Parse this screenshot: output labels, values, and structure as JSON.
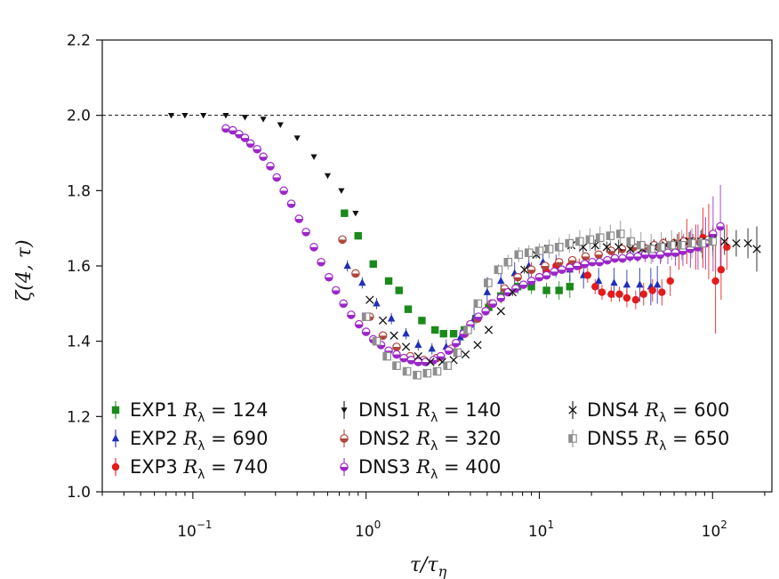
{
  "chart_data": {
    "type": "scatter",
    "title": "",
    "xlabel": "τ/τ",
    "xlabel_sub": "η",
    "ylabel": "ζ(4, τ)",
    "xscale": "log",
    "xlim": [
      0.03,
      220
    ],
    "ylim": [
      1.0,
      2.2
    ],
    "xticks": [
      {
        "value": 0.1,
        "base": "10",
        "exp": "−1"
      },
      {
        "value": 1,
        "base": "10",
        "exp": "0"
      },
      {
        "value": 10,
        "base": "10",
        "exp": "1"
      },
      {
        "value": 100,
        "base": "10",
        "exp": "2"
      }
    ],
    "yticks": [
      {
        "value": 1.0,
        "label": "1.0"
      },
      {
        "value": 1.2,
        "label": "1.2"
      },
      {
        "value": 1.4,
        "label": "1.4"
      },
      {
        "value": 1.6,
        "label": "1.6"
      },
      {
        "value": 1.8,
        "label": "1.8"
      },
      {
        "value": 2.0,
        "label": "2.0"
      },
      {
        "value": 2.2,
        "label": "2.2"
      }
    ],
    "reference_line": {
      "y": 2.0,
      "style": "dashed"
    },
    "legend_position": "bottom-left",
    "series": [
      {
        "name": "EXP1",
        "rlabel": "R",
        "rsub": "λ",
        "rvalue": "= 124",
        "marker": "square",
        "color": "#1a8a1a",
        "x": [
          0.75,
          0.9,
          1.1,
          1.35,
          1.55,
          1.75,
          2.1,
          2.5,
          2.8,
          3.2,
          3.7,
          4.3,
          5.1,
          6,
          7.5,
          9,
          11,
          13,
          15
        ],
        "y": [
          1.74,
          1.68,
          1.605,
          1.56,
          1.535,
          1.485,
          1.455,
          1.43,
          1.42,
          1.42,
          1.43,
          1.46,
          1.49,
          1.52,
          1.545,
          1.545,
          1.535,
          1.535,
          1.545
        ],
        "err": [
          0.01,
          0.01,
          0.01,
          0.01,
          0.01,
          0.01,
          0.01,
          0.01,
          0.01,
          0.01,
          0.01,
          0.015,
          0.015,
          0.02,
          0.02,
          0.02,
          0.02,
          0.025,
          0.03
        ]
      },
      {
        "name": "EXP2",
        "rlabel": "R",
        "rsub": "λ",
        "rvalue": "= 690",
        "marker": "triangle",
        "color": "#1f2fb8",
        "x": [
          0.78,
          0.95,
          1.15,
          1.4,
          1.7,
          2.0,
          2.4,
          2.9,
          3.5,
          4.2,
          5.0,
          6.0,
          7.2,
          8.7,
          10.5,
          12.5,
          15,
          18,
          22,
          27,
          32,
          38,
          44,
          48
        ],
        "y": [
          1.6,
          1.555,
          1.5,
          1.46,
          1.42,
          1.39,
          1.38,
          1.385,
          1.41,
          1.46,
          1.53,
          1.56,
          1.58,
          1.6,
          1.61,
          1.6,
          1.59,
          1.575,
          1.56,
          1.555,
          1.55,
          1.55,
          1.545,
          1.55
        ],
        "err": [
          0.015,
          0.015,
          0.015,
          0.015,
          0.015,
          0.015,
          0.015,
          0.02,
          0.02,
          0.03,
          0.04,
          0.04,
          0.03,
          0.03,
          0.03,
          0.03,
          0.03,
          0.035,
          0.035,
          0.04,
          0.04,
          0.045,
          0.05,
          0.05
        ]
      },
      {
        "name": "EXP3",
        "rlabel": "R",
        "rsub": "λ",
        "rvalue": "= 740",
        "marker": "circle",
        "color": "#e31b1b",
        "x": [
          9,
          11,
          12.5,
          15,
          17,
          19,
          21,
          23,
          26,
          29,
          32,
          36,
          40,
          45,
          51,
          57,
          64,
          71,
          80,
          88,
          95,
          104,
          112,
          121
        ],
        "y": [
          1.59,
          1.585,
          1.6,
          1.6,
          1.6,
          1.575,
          1.545,
          1.53,
          1.525,
          1.525,
          1.515,
          1.51,
          1.525,
          1.535,
          1.53,
          1.56,
          1.64,
          1.665,
          1.65,
          1.675,
          1.665,
          1.56,
          1.59,
          1.65
        ],
        "err": [
          0.02,
          0.02,
          0.02,
          0.02,
          0.02,
          0.02,
          0.02,
          0.02,
          0.02,
          0.02,
          0.025,
          0.025,
          0.03,
          0.03,
          0.035,
          0.04,
          0.05,
          0.06,
          0.06,
          0.08,
          0.1,
          0.14,
          0.08,
          0.06
        ]
      },
      {
        "name": "DNS1",
        "rlabel": "R",
        "rsub": "λ",
        "rvalue": "= 140",
        "marker": "triangle-down",
        "color": "#111111",
        "x": [
          0.075,
          0.09,
          0.115,
          0.155,
          0.2,
          0.255,
          0.32,
          0.4,
          0.5,
          0.6,
          0.72,
          0.87
        ],
        "y": [
          2.0,
          2.0,
          2.0,
          2.0,
          1.995,
          1.99,
          1.975,
          1.94,
          1.89,
          1.84,
          1.8,
          1.74
        ],
        "err": [
          0,
          0,
          0,
          0,
          0,
          0,
          0,
          0,
          0,
          0,
          0,
          0
        ]
      },
      {
        "name": "DNS2",
        "rlabel": "R",
        "rsub": "λ",
        "rvalue": "= 320",
        "marker": "circle-half",
        "color": "#b0453a",
        "x": [
          0.73,
          0.87,
          1.05,
          1.25,
          1.5,
          1.8,
          2.15,
          2.55,
          3.1,
          3.7,
          4.4,
          5.3,
          6.3,
          7.5,
          9,
          10.8,
          13,
          15.5,
          18.5,
          22,
          26,
          30,
          35,
          40,
          46,
          52,
          60,
          68,
          77,
          86,
          95
        ],
        "y": [
          1.67,
          1.58,
          1.465,
          1.415,
          1.385,
          1.36,
          1.35,
          1.355,
          1.38,
          1.42,
          1.46,
          1.5,
          1.54,
          1.57,
          1.59,
          1.6,
          1.61,
          1.615,
          1.625,
          1.63,
          1.64,
          1.645,
          1.65,
          1.65,
          1.655,
          1.66,
          1.66,
          1.665,
          1.665,
          1.665,
          1.67
        ],
        "err": [
          0.005,
          0.005,
          0.005,
          0.005,
          0.005,
          0.005,
          0.005,
          0.005,
          0.005,
          0.005,
          0.005,
          0.005,
          0.01,
          0.01,
          0.01,
          0.01,
          0.01,
          0.01,
          0.01,
          0.01,
          0.012,
          0.012,
          0.012,
          0.015,
          0.015,
          0.015,
          0.015,
          0.02,
          0.02,
          0.02,
          0.02
        ]
      },
      {
        "name": "DNS3",
        "rlabel": "R",
        "rsub": "λ",
        "rvalue": "= 400",
        "marker": "circle-half",
        "color": "#9b27c9",
        "x": [
          0.155,
          0.17,
          0.185,
          0.2,
          0.215,
          0.235,
          0.255,
          0.28,
          0.305,
          0.335,
          0.37,
          0.41,
          0.45,
          0.5,
          0.55,
          0.61,
          0.67,
          0.74,
          0.82,
          0.91,
          1.0,
          1.1,
          1.22,
          1.35,
          1.5,
          1.65,
          1.82,
          2.0,
          2.2,
          2.45,
          2.7,
          3.0,
          3.3,
          3.65,
          4.0,
          4.45,
          4.9,
          5.4,
          6.0,
          6.6,
          7.3,
          8.1,
          9.0,
          10.0,
          11,
          12.2,
          13.5,
          15,
          16.5,
          18.3,
          20.2,
          22.3,
          24.7,
          27.3,
          30.2,
          33.4,
          36.9,
          40.8,
          45.1,
          49.9,
          55.2,
          61,
          67.4,
          74.5,
          82.4,
          91.1,
          100.7,
          111
        ],
        "y": [
          1.965,
          1.96,
          1.95,
          1.94,
          1.925,
          1.91,
          1.89,
          1.865,
          1.835,
          1.8,
          1.765,
          1.725,
          1.69,
          1.65,
          1.61,
          1.57,
          1.535,
          1.5,
          1.47,
          1.445,
          1.425,
          1.405,
          1.39,
          1.375,
          1.365,
          1.355,
          1.35,
          1.345,
          1.345,
          1.35,
          1.36,
          1.375,
          1.395,
          1.42,
          1.445,
          1.465,
          1.48,
          1.5,
          1.515,
          1.53,
          1.54,
          1.55,
          1.56,
          1.57,
          1.575,
          1.585,
          1.59,
          1.595,
          1.6,
          1.605,
          1.61,
          1.61,
          1.615,
          1.62,
          1.62,
          1.625,
          1.625,
          1.63,
          1.63,
          1.63,
          1.635,
          1.635,
          1.64,
          1.645,
          1.65,
          1.66,
          1.685,
          1.705
        ],
        "err": [
          0,
          0,
          0,
          0,
          0,
          0,
          0,
          0,
          0,
          0,
          0,
          0,
          0,
          0,
          0,
          0,
          0,
          0,
          0,
          0,
          0,
          0,
          0,
          0,
          0,
          0,
          0,
          0,
          0,
          0,
          0,
          0,
          0,
          0,
          0,
          0,
          0,
          0,
          0,
          0,
          0.005,
          0.005,
          0.005,
          0.005,
          0.005,
          0.005,
          0.005,
          0.008,
          0.008,
          0.008,
          0.01,
          0.01,
          0.01,
          0.012,
          0.012,
          0.015,
          0.015,
          0.02,
          0.02,
          0.025,
          0.03,
          0.035,
          0.04,
          0.05,
          0.06,
          0.07,
          0.1,
          0.11
        ]
      },
      {
        "name": "DNS4",
        "rlabel": "R",
        "rsub": "λ",
        "rvalue": "= 600",
        "marker": "cross",
        "color": "#111111",
        "x": [
          1.05,
          1.25,
          1.45,
          1.7,
          2.0,
          2.35,
          2.75,
          3.2,
          3.75,
          4.4,
          5.1,
          6.0,
          7.0,
          8.2,
          9.6,
          11.2,
          13.1,
          15.3,
          17.9,
          21,
          24.5,
          28.7,
          33.5,
          39.2,
          45.8,
          53.6,
          62.7,
          73.3,
          85.7,
          100.2,
          117.2,
          137,
          160,
          180
        ],
        "y": [
          1.51,
          1.455,
          1.415,
          1.385,
          1.36,
          1.345,
          1.345,
          1.35,
          1.365,
          1.39,
          1.43,
          1.48,
          1.53,
          1.59,
          1.63,
          1.645,
          1.65,
          1.655,
          1.65,
          1.655,
          1.65,
          1.65,
          1.645,
          1.645,
          1.65,
          1.655,
          1.66,
          1.665,
          1.665,
          1.67,
          1.665,
          1.66,
          1.66,
          1.645
        ],
        "err": [
          0,
          0,
          0,
          0,
          0,
          0,
          0,
          0,
          0,
          0,
          0,
          0,
          0.01,
          0.01,
          0.01,
          0.01,
          0.01,
          0.01,
          0.015,
          0.015,
          0.015,
          0.02,
          0.02,
          0.02,
          0.02,
          0.02,
          0.025,
          0.025,
          0.03,
          0.03,
          0.035,
          0.035,
          0.04,
          0.06
        ]
      },
      {
        "name": "DNS5",
        "rlabel": "R",
        "rsub": "λ",
        "rvalue": "= 650",
        "marker": "square-half",
        "color": "#8e8e8e",
        "x": [
          1.0,
          1.15,
          1.32,
          1.5,
          1.72,
          1.97,
          2.25,
          2.57,
          2.95,
          3.37,
          3.86,
          4.42,
          5.06,
          5.8,
          6.6,
          7.6,
          8.7,
          10,
          11.4,
          13,
          14.9,
          17.1,
          19.6,
          22.4,
          25.7,
          29.4,
          33.7,
          38.6,
          44.2,
          50.6,
          58,
          66.4,
          76,
          87,
          100
        ],
        "y": [
          1.465,
          1.4,
          1.36,
          1.335,
          1.32,
          1.31,
          1.315,
          1.32,
          1.335,
          1.37,
          1.43,
          1.5,
          1.555,
          1.59,
          1.61,
          1.63,
          1.635,
          1.64,
          1.645,
          1.65,
          1.66,
          1.665,
          1.67,
          1.675,
          1.68,
          1.685,
          1.665,
          1.655,
          1.645,
          1.65,
          1.655,
          1.655,
          1.66,
          1.66,
          1.665
        ],
        "err": [
          0.005,
          0.005,
          0.005,
          0.005,
          0.005,
          0.005,
          0.005,
          0.005,
          0.005,
          0.01,
          0.01,
          0.01,
          0.015,
          0.015,
          0.02,
          0.02,
          0.02,
          0.02,
          0.025,
          0.025,
          0.025,
          0.03,
          0.03,
          0.03,
          0.03,
          0.035,
          0.035,
          0.035,
          0.04,
          0.04,
          0.04,
          0.04,
          0.04,
          0.04,
          0.04
        ]
      }
    ]
  }
}
